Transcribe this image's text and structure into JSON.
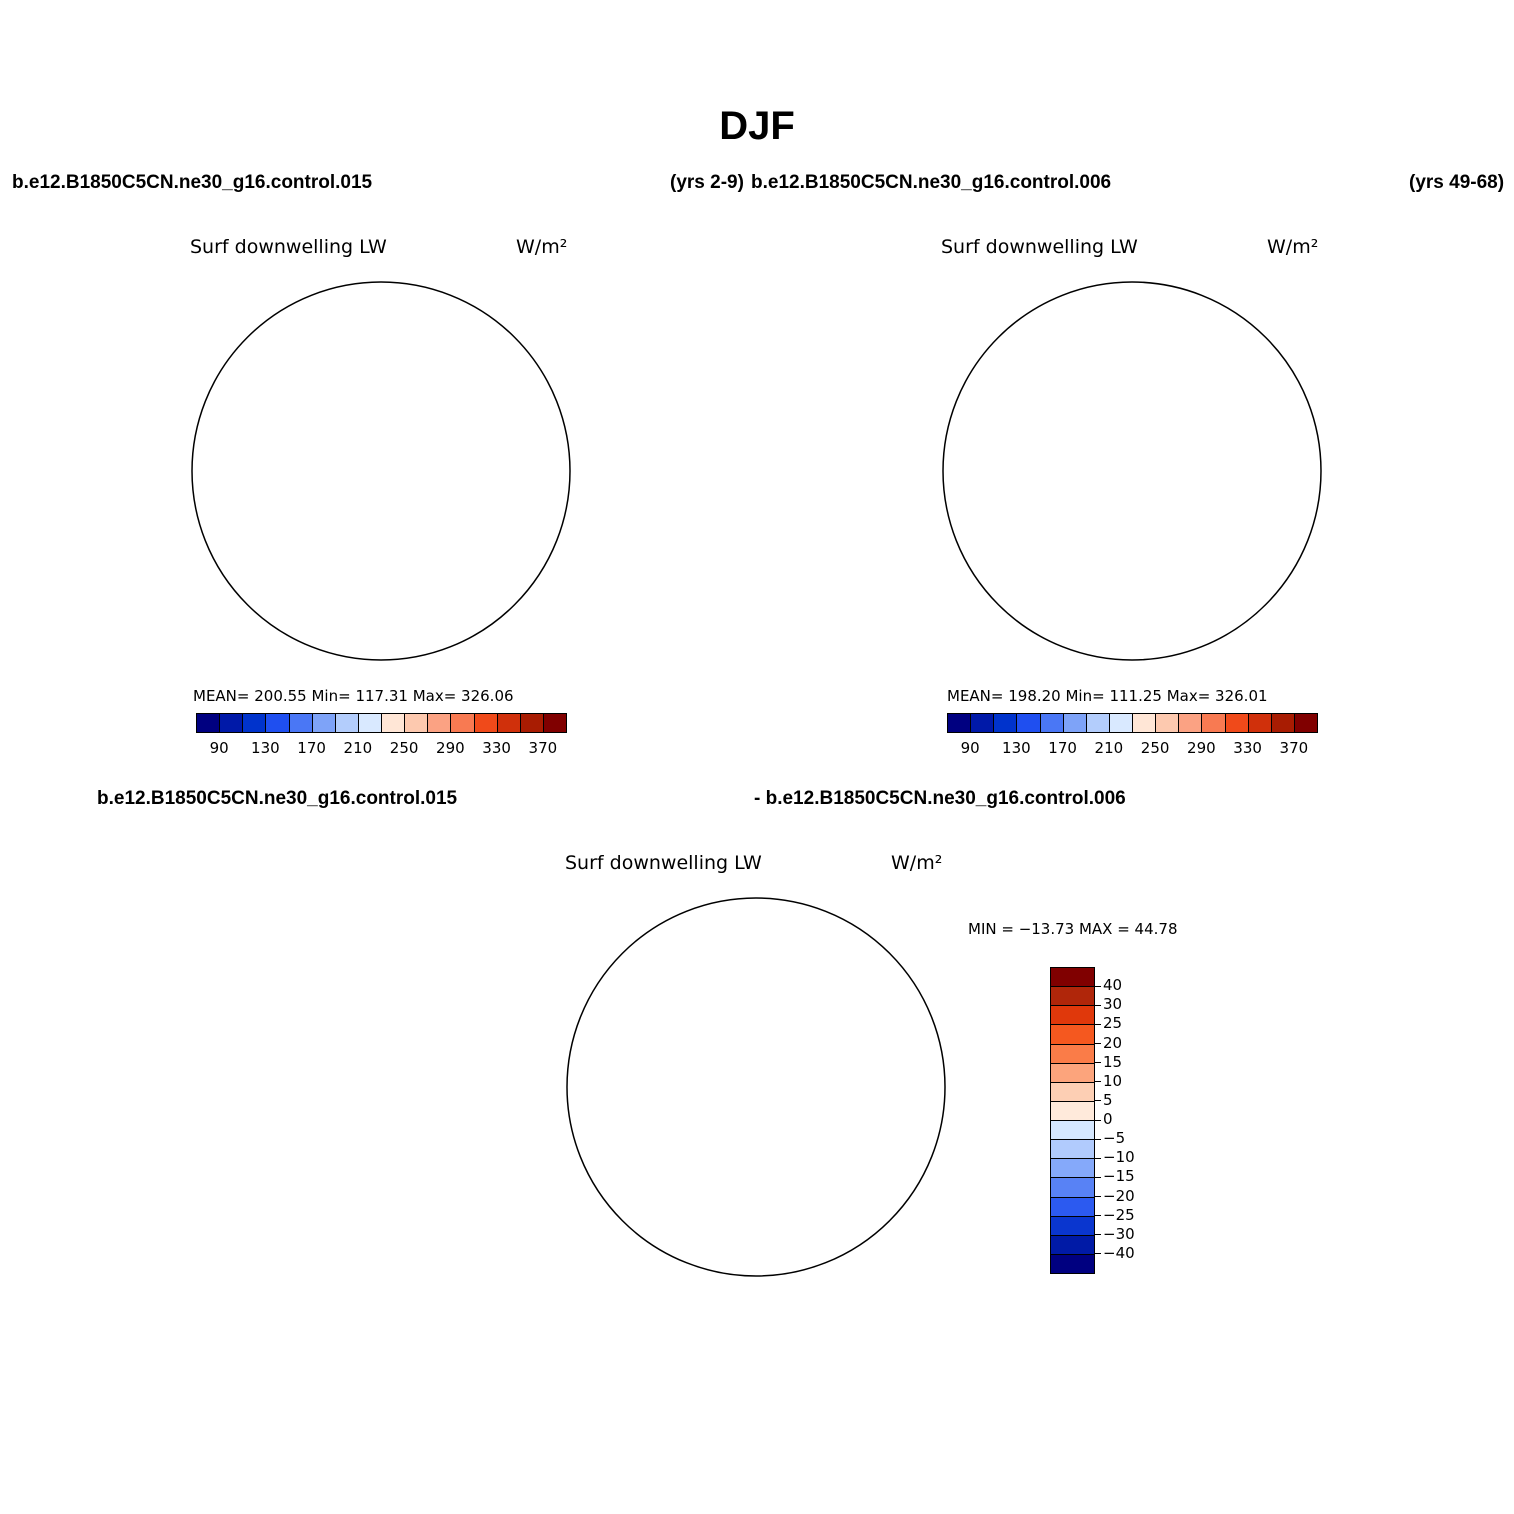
{
  "title": "DJF",
  "panels": {
    "top_left": {
      "case_label": "b.e12.B1850C5CN.ne30_g16.control.015",
      "years": "(yrs 2-9)",
      "variable": "Surf downwelling LW",
      "units": "W/m²",
      "stats": "MEAN= 200.55   Min= 117.31   Max= 326.06"
    },
    "top_right": {
      "case_label": "b.e12.B1850C5CN.ne30_g16.control.006",
      "years": "(yrs 49-68)",
      "variable": "Surf downwelling LW",
      "units": "W/m²",
      "stats": "MEAN= 198.20   Min= 111.25   Max= 326.01"
    },
    "difference": {
      "case_label_a": "b.e12.B1850C5CN.ne30_g16.control.015",
      "case_label_b": "- b.e12.B1850C5CN.ne30_g16.control.006",
      "variable": "Surf downwelling LW",
      "units": "W/m²",
      "stats": "MIN = −13.73 MAX =  44.78"
    }
  },
  "colorbar_abs": {
    "labels": [
      "90",
      "130",
      "170",
      "210",
      "250",
      "290",
      "330",
      "370"
    ],
    "colors": [
      "#000080",
      "#0019a8",
      "#0033cc",
      "#1f4ff0",
      "#4a77f5",
      "#7ea3f8",
      "#b3cdfc",
      "#d9e9ff",
      "#ffe6d6",
      "#fdc9af",
      "#fba283",
      "#f87a52",
      "#f04a1a",
      "#d0300b",
      "#a81c02",
      "#800000"
    ]
  },
  "colorbar_diff": {
    "labels": [
      "40",
      "30",
      "25",
      "20",
      "15",
      "10",
      "5",
      "0",
      "−5",
      "−10",
      "−15",
      "−20",
      "−25",
      "−30",
      "−40"
    ],
    "colors": [
      "#800000",
      "#b0260a",
      "#e0380b",
      "#f5581f",
      "#fa7c48",
      "#fca47c",
      "#fdcfb4",
      "#ffeadb",
      "#d6e8ff",
      "#b1cbfd",
      "#85a9fa",
      "#5882f5",
      "#2c5af0",
      "#0a36cf",
      "#001aa6",
      "#000080"
    ]
  }
}
